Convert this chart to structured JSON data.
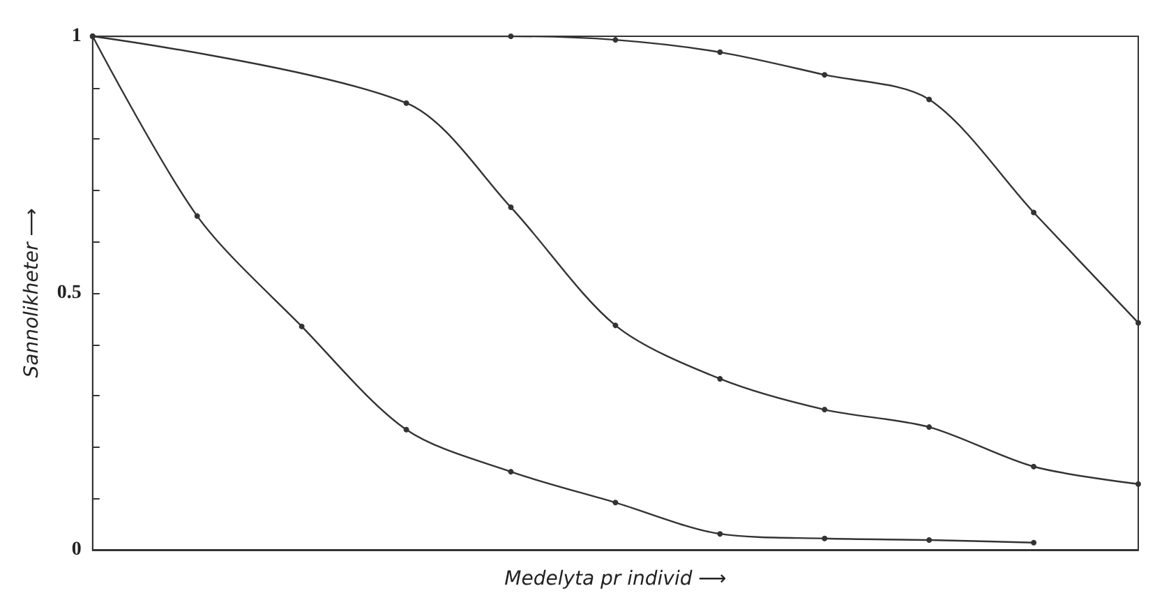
{
  "chart_data": {
    "type": "line",
    "xlabel": "Medelyta pr individ ⟶",
    "ylabel": "Sannolikheter ⟶",
    "categories": [
      null,
      null,
      null,
      null,
      null,
      null,
      null,
      null,
      null,
      null,
      null
    ],
    "series": [
      {
        "color": "#333333",
        "values": [
          1,
          null,
          null,
          null,
          1.0,
          0.993,
          0.969,
          0.925,
          0.877,
          0.657,
          0.442
        ]
      },
      {
        "color": "#333333",
        "values": [
          1,
          null,
          null,
          0.87,
          0.667,
          0.437,
          0.333,
          0.273,
          0.239,
          0.162,
          0.128
        ]
      },
      {
        "color": "#333333",
        "values": [
          1,
          0.65,
          0.435,
          0.234,
          0.152,
          0.092,
          0.031,
          0.022,
          0.019,
          0.014,
          null
        ]
      }
    ],
    "ylim": [
      0,
      1
    ],
    "yticks": [
      0,
      {
        "value": 0.1,
        "label": null
      },
      {
        "value": 0.2,
        "label": null
      },
      {
        "value": 0.3,
        "label": null
      },
      {
        "value": 0.4,
        "label": null
      },
      0.5,
      {
        "value": 0.6,
        "label": null
      },
      {
        "value": 0.7,
        "label": null
      },
      {
        "value": 0.8,
        "label": null
      },
      {
        "value": 0.9,
        "label": null
      },
      1
    ],
    "tick_labels": "y",
    "grid": false,
    "marker": "circle",
    "line_style": "solid"
  }
}
